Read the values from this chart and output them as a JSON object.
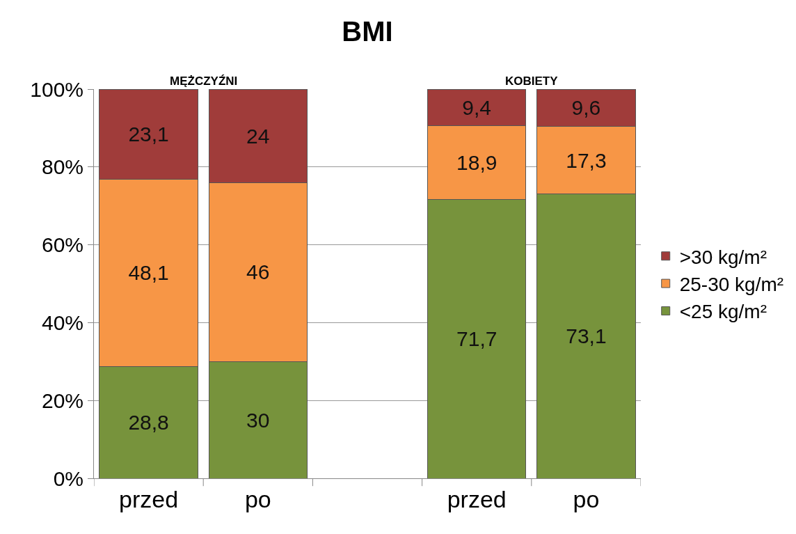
{
  "chart_data": {
    "type": "bar",
    "title": "BMI",
    "stacked": true,
    "categories": [
      "przed",
      "po",
      null,
      "przed",
      "po"
    ],
    "series": [
      {
        "name": "<25 kg/m²",
        "color": "#77933c",
        "values": [
          28.8,
          30,
          null,
          71.7,
          73.1
        ],
        "value_labels": [
          "28,8",
          "30",
          null,
          "71,7",
          "73,1"
        ]
      },
      {
        "name": "25-30 kg/m²",
        "color": "#f79646",
        "values": [
          48.1,
          46,
          null,
          18.9,
          17.3
        ],
        "value_labels": [
          "48,1",
          "46",
          null,
          "18,9",
          "17,3"
        ]
      },
      {
        "name": ">30 kg/m²",
        "color": "#a03c3a",
        "values": [
          23.1,
          24,
          null,
          9.4,
          9.6
        ],
        "value_labels": [
          "23,1",
          "24",
          null,
          "9,4",
          "9,6"
        ]
      }
    ],
    "annotations": [
      "MĘŻCZYŹNI",
      "KOBIETY"
    ],
    "ylim": [
      0,
      100
    ],
    "yticks": [
      {
        "value": 0,
        "label": "0%"
      },
      {
        "value": 20,
        "label": "20%"
      },
      {
        "value": 40,
        "label": "40%"
      },
      {
        "value": 60,
        "label": "60%"
      },
      {
        "value": 80,
        "label": "80%"
      },
      {
        "value": 100,
        "label": "100%"
      }
    ],
    "grid": "y",
    "legend": "right"
  }
}
